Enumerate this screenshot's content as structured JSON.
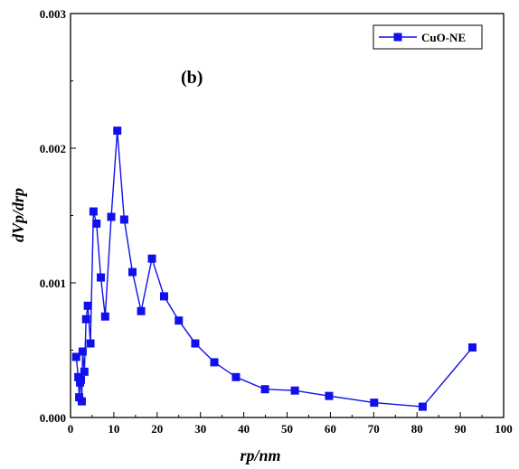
{
  "chart_data": {
    "type": "line",
    "title": "",
    "xlabel": "rp/nm",
    "ylabel": "dVp/drp",
    "xlim": [
      0,
      100
    ],
    "ylim": [
      0,
      0.003
    ],
    "x_ticks": [
      "0",
      "10",
      "20",
      "30",
      "40",
      "50",
      "60",
      "70",
      "80",
      "90",
      "100"
    ],
    "y_ticks": [
      "0.000",
      "0.001",
      "0.002",
      "0.003"
    ],
    "annotation": "(b)",
    "legend_position": "top-right",
    "grid": false,
    "series": [
      {
        "name": "CuO-NE",
        "color": "#1010ee",
        "marker": "square",
        "x": [
          1.3,
          1.8,
          2.0,
          2.2,
          2.4,
          2.6,
          2.8,
          3.2,
          3.6,
          4.0,
          4.6,
          5.3,
          6.0,
          7.0,
          8.0,
          9.4,
          10.8,
          12.4,
          14.3,
          16.3,
          18.8,
          21.6,
          25.0,
          28.8,
          33.2,
          38.2,
          44.9,
          51.8,
          59.7,
          70.1,
          81.3,
          92.8
        ],
        "y": [
          0.00045,
          0.0003,
          0.00015,
          0.00026,
          0.00028,
          0.00012,
          0.00049,
          0.00034,
          0.00073,
          0.00083,
          0.00055,
          0.00153,
          0.00144,
          0.00104,
          0.00075,
          0.00149,
          0.00213,
          0.00147,
          0.00108,
          0.00079,
          0.00118,
          0.0009,
          0.00072,
          0.00055,
          0.00041,
          0.0003,
          0.00021,
          0.0002,
          0.00016,
          0.00011,
          8e-05,
          0.00052
        ]
      }
    ]
  }
}
